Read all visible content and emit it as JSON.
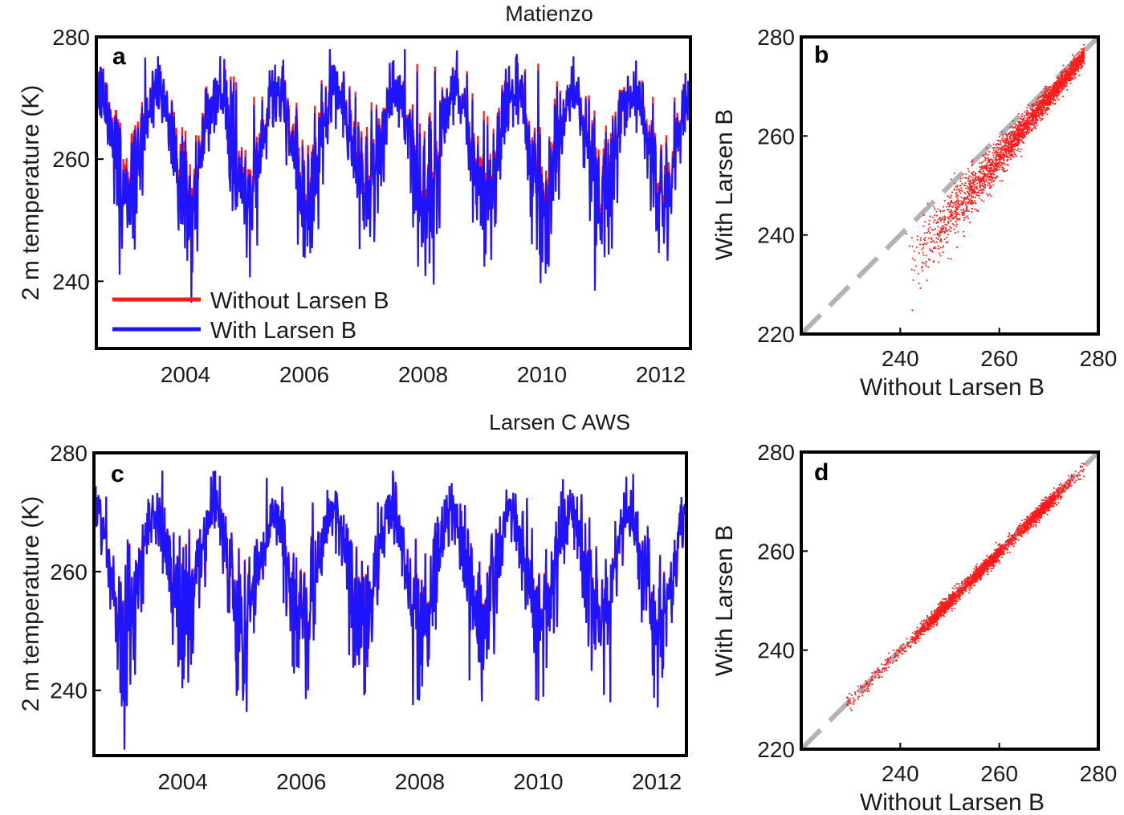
{
  "colors": {
    "without": "#ff1a1a",
    "with": "#1f14ff",
    "diagonal": "#b3b3b3",
    "scatter": "#ff1a1a",
    "axes": "#000000"
  },
  "chart_data": [
    {
      "panel": "a",
      "type": "line",
      "title": "Matienzo",
      "xlabel": "",
      "ylabel": "2 m temperature (K)",
      "xlim": [
        2003.0,
        2013.0
      ],
      "ylim": [
        229,
        280
      ],
      "xticks": [
        2004,
        2006,
        2008,
        2010,
        2012
      ],
      "yticks": [
        240,
        260,
        280
      ],
      "legend": {
        "placement": "bottom-left"
      },
      "series": [
        {
          "name": "Without Larsen B",
          "color": "#ff1a1a",
          "summary": {
            "summer_max": 278,
            "winter_min": 233,
            "mean_winter_offset_vs_with": 1.2
          }
        },
        {
          "name": "With Larsen B",
          "color": "#1f14ff",
          "summary": {
            "summer_max": 278,
            "winter_min": 233
          }
        }
      ]
    },
    {
      "panel": "b",
      "type": "scatter",
      "title": "",
      "xlabel": "Without Larsen B",
      "ylabel": "With Larsen B",
      "xlim": [
        220,
        280
      ],
      "ylim": [
        220,
        280
      ],
      "xticks": [
        240,
        260,
        280
      ],
      "yticks": [
        220,
        240,
        260,
        280
      ],
      "reference_line": "1:1",
      "points_summary": {
        "x_range": [
          241,
          277
        ],
        "bias_at_245": -7,
        "bias_at_275": -1
      }
    },
    {
      "panel": "c",
      "type": "line",
      "title": "Larsen C AWS",
      "xlabel": "",
      "ylabel": "2 m temperature (K)",
      "xlim": [
        2003.0,
        2013.0
      ],
      "ylim": [
        229,
        280
      ],
      "xticks": [
        2004,
        2006,
        2008,
        2010,
        2012
      ],
      "yticks": [
        240,
        260,
        280
      ],
      "series": [
        {
          "name": "Without Larsen B",
          "color": "#ff1a1a",
          "summary": {
            "summer_max": 277,
            "winter_min": 230
          }
        },
        {
          "name": "With Larsen B",
          "color": "#1f14ff",
          "summary": {
            "summer_max": 277,
            "winter_min": 230
          }
        }
      ]
    },
    {
      "panel": "d",
      "type": "scatter",
      "title": "",
      "xlabel": "Without Larsen B",
      "ylabel": "With Larsen B",
      "xlim": [
        220,
        280
      ],
      "ylim": [
        220,
        280
      ],
      "xticks": [
        240,
        260,
        280
      ],
      "yticks": [
        220,
        240,
        260,
        280
      ],
      "reference_line": "1:1",
      "points_summary": {
        "x_range": [
          229,
          277
        ],
        "bias": 0
      }
    }
  ]
}
